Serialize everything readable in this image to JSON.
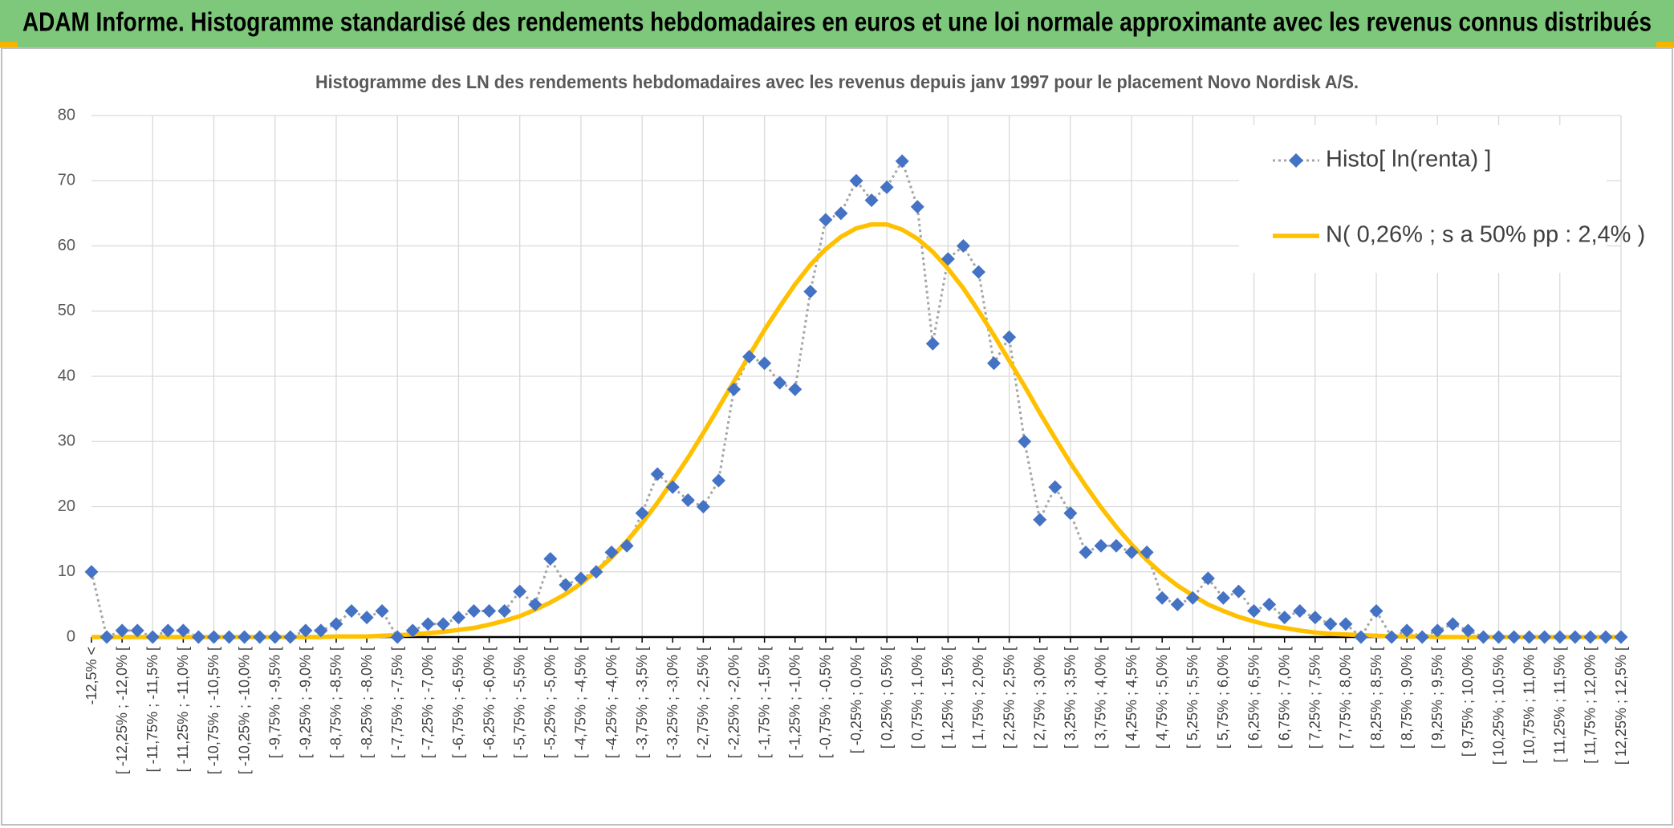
{
  "chart_data": {
    "type": "line",
    "title": "ADAM Informe. Histogramme standardisé des rendements hebdomadaires en euros et une loi normale approximante avec les revenus connus distribués",
    "subtitle": "Histogramme des LN des rendements hebdomadaires avec les revenus depuis janv 1997 pour le placement Novo Nordisk A/S.",
    "categories": [
      "-12,5% <",
      null,
      "[ -12,25% ; -12,0% [",
      null,
      "[ -11,75% ; -11,5% [",
      null,
      "[ -11,25% ; -11,0% [",
      null,
      "[ -10,75% ; -10,5% [",
      null,
      "[ -10,25% ; -10,0% [",
      null,
      "[ -9,75% ; -9,5% [",
      null,
      "[ -9,25% ; -9,0% [",
      null,
      "[ -8,75% ; -8,5% [",
      null,
      "[ -8,25% ; -8,0% [",
      null,
      "[ -7,75% ; -7,5% [",
      null,
      "[ -7,25% ; -7,0% [",
      null,
      "[ -6,75% ; -6,5% [",
      null,
      "[ -6,25% ; -6,0% [",
      null,
      "[ -5,75% ; -5,5% [",
      null,
      "[ -5,25% ; -5,0% [",
      null,
      "[ -4,75% ; -4,5% [",
      null,
      "[ -4,25% ; -4,0% [",
      null,
      "[ -3,75% ; -3,5% [",
      null,
      "[ -3,25% ; -3,0% [",
      null,
      "[ -2,75% ; -2,5% [",
      null,
      "[ -2,25% ; -2,0% [",
      null,
      "[ -1,75% ; -1,5% [",
      null,
      "[ -1,25% ; -1,0% [",
      null,
      "[ -0,75% ; -0,5% [",
      null,
      "[ -0,25% ; 0,0% [",
      null,
      "[ 0,25% ; 0,5% [",
      null,
      "[ 0,75% ; 1,0% [",
      null,
      "[ 1,25% ; 1,5% [",
      null,
      "[ 1,75% ; 2,0% [",
      null,
      "[ 2,25% ; 2,5% [",
      null,
      "[ 2,75% ; 3,0% [",
      null,
      "[ 3,25% ; 3,5% [",
      null,
      "[ 3,75% ; 4,0% [",
      null,
      "[ 4,25% ; 4,5% [",
      null,
      "[ 4,75% ; 5,0% [",
      null,
      "[ 5,25% ; 5,5% [",
      null,
      "[ 5,75% ; 6,0% [",
      null,
      "[ 6,25% ; 6,5% [",
      null,
      "[ 6,75% ; 7,0% [",
      null,
      "[ 7,25% ; 7,5% [",
      null,
      "[ 7,75% ; 8,0% [",
      null,
      "[ 8,25% ; 8,5% [",
      null,
      "[ 8,75% ; 9,0% [",
      null,
      "[ 9,25% ; 9,5% [",
      null,
      "[ 9,75% ; 10,0% [",
      null,
      "[ 10,25% ; 10,5% [",
      null,
      "[ 10,75% ; 11,0% [",
      null,
      "[ 11,25% ; 11,5% [",
      null,
      "[ 11,75% ; 12,0% [",
      null,
      "[ 12,25% ; 12,5% ["
    ],
    "series": [
      {
        "name": "Histo[ ln(renta) ]",
        "color": "#4472c4",
        "line_color": "#a5a5a5",
        "marker": "diamond",
        "line_style": "dotted",
        "values": [
          10,
          0,
          1,
          1,
          0,
          1,
          1,
          0,
          0,
          0,
          0,
          0,
          0,
          0,
          1,
          1,
          2,
          4,
          3,
          4,
          0,
          1,
          2,
          2,
          3,
          4,
          4,
          4,
          7,
          5,
          12,
          8,
          9,
          10,
          13,
          14,
          19,
          25,
          23,
          21,
          20,
          24,
          38,
          43,
          42,
          39,
          38,
          53,
          64,
          65,
          70,
          67,
          69,
          73,
          66,
          45,
          58,
          60,
          56,
          42,
          46,
          30,
          18,
          23,
          19,
          13,
          14,
          14,
          13,
          13,
          6,
          5,
          6,
          9,
          6,
          7,
          4,
          5,
          3,
          4,
          3,
          2,
          2,
          0,
          4,
          0,
          1,
          0,
          1,
          2,
          1,
          0,
          0,
          0,
          0,
          0,
          0,
          0,
          0,
          0,
          0
        ]
      },
      {
        "name": "N( 0,26% ; s a 50% pp : 2,4% )",
        "color": "#ffc000",
        "line_style": "solid",
        "values": [
          0,
          0,
          0,
          0,
          0,
          0,
          0,
          0,
          0,
          0,
          0,
          0,
          0,
          0,
          0,
          0,
          0.1,
          0.1,
          0.1,
          0.2,
          0.3,
          0.4,
          0.6,
          0.8,
          1.1,
          1.4,
          1.9,
          2.5,
          3.2,
          4.2,
          5.3,
          6.6,
          8.2,
          10.1,
          12.2,
          14.7,
          17.5,
          20.6,
          24.0,
          27.5,
          31.3,
          35.2,
          39.2,
          43.2,
          47.1,
          50.7,
          54.1,
          57.1,
          59.5,
          61.4,
          62.7,
          63.3,
          63.3,
          62.5,
          61.1,
          59.1,
          56.5,
          53.5,
          50.0,
          46.3,
          42.4,
          38.5,
          34.4,
          30.5,
          26.7,
          23.2,
          19.9,
          16.9,
          14.2,
          11.8,
          9.7,
          7.9,
          6.4,
          5.0,
          4.0,
          3.1,
          2.4,
          1.8,
          1.4,
          1.0,
          0.7,
          0.5,
          0.4,
          0.3,
          0.2,
          0.1,
          0.1,
          0.1,
          0,
          0,
          0,
          0,
          0,
          0,
          0,
          0,
          0,
          0,
          0,
          0,
          0
        ]
      }
    ],
    "ylim": [
      0,
      80
    ],
    "yticks": [
      0,
      10,
      20,
      30,
      40,
      50,
      60,
      70,
      80
    ],
    "grid": true,
    "legend": "top-right"
  }
}
